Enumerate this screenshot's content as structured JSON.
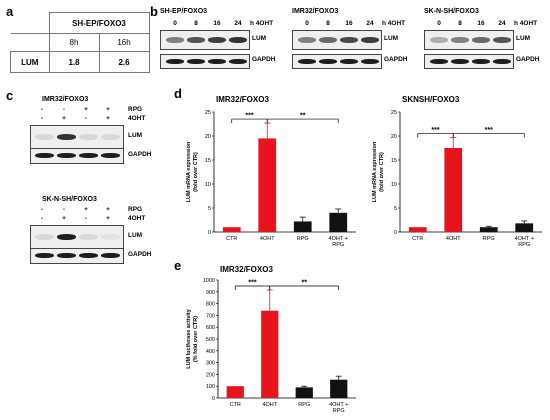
{
  "panel_labels": {
    "a": "a",
    "b": "b",
    "c": "c",
    "d": "d",
    "e": "e"
  },
  "panel_a": {
    "header": "SH-EP/FOXO3",
    "cols": [
      "8h",
      "16h"
    ],
    "row_label": "LUM",
    "values": [
      "1.8",
      "2.6"
    ]
  },
  "panel_b": {
    "blots": [
      {
        "title": "SH-EP/FOXO3",
        "times": [
          "0",
          "8",
          "16",
          "24"
        ],
        "unit": "h 4OHT",
        "rows": [
          "LUM",
          "GAPDH"
        ]
      },
      {
        "title": "IMR32/FOXO3",
        "times": [
          "0",
          "8",
          "16",
          "24"
        ],
        "unit": "h 4OHT",
        "rows": [
          "LUM",
          "GAPDH"
        ]
      },
      {
        "title": "SK-N-SH/FOXO3",
        "times": [
          "0",
          "8",
          "16",
          "24"
        ],
        "unit": "h 4OHT",
        "rows": [
          "LUM",
          "GAPDH"
        ]
      }
    ]
  },
  "panel_c": {
    "blots": [
      {
        "title": "IMR32/FOXO3",
        "rpg": [
          "-",
          "-",
          "+",
          "+"
        ],
        "oht": [
          "-",
          "+",
          "-",
          "+"
        ],
        "rpg_label": "RPG",
        "oht_label": "4OHT",
        "rows": [
          "LUM",
          "GAPDH"
        ]
      },
      {
        "title": "SK-N-SH/FOXO3",
        "rpg": [
          "-",
          "-",
          "+",
          "+"
        ],
        "oht": [
          "-",
          "+",
          "-",
          "+"
        ],
        "rpg_label": "RPG",
        "oht_label": "4OHT",
        "rows": [
          "LUM",
          "GAPDH"
        ]
      }
    ]
  },
  "colors": {
    "red": "#e8141b",
    "black": "#111111"
  },
  "chart_data": [
    {
      "id": "d1",
      "type": "bar",
      "title": "IMR32/FOXO3",
      "ylabel": "LUM mRNA expression\n(fold over CTR)",
      "categories": [
        "CTR",
        "4OHT",
        "RPG",
        "4OHT +\nRPG"
      ],
      "values": [
        1,
        19.5,
        2.2,
        4
      ],
      "errors": [
        0,
        3.2,
        0.9,
        0.8
      ],
      "colors": [
        "red",
        "red",
        "black",
        "black"
      ],
      "ylim": [
        0,
        25
      ],
      "yticks": [
        0,
        5,
        10,
        15,
        20,
        25
      ],
      "sig": [
        {
          "from": 0,
          "to": 1,
          "label": "***"
        },
        {
          "from": 1,
          "to": 3,
          "label": "**"
        }
      ]
    },
    {
      "id": "d2",
      "type": "bar",
      "title": "SKNSH/FOXO3",
      "ylabel": "LUM mRNA expression\n(fold over CTR)",
      "categories": [
        "CTR",
        "4OHT",
        "RPG",
        "4OHT +\nRPG"
      ],
      "values": [
        1,
        17.5,
        1,
        1.8
      ],
      "errors": [
        0,
        2.2,
        0.2,
        0.5
      ],
      "colors": [
        "red",
        "red",
        "black",
        "black"
      ],
      "ylim": [
        0,
        25
      ],
      "yticks": [
        0,
        5,
        10,
        15,
        20,
        25
      ],
      "sig": [
        {
          "from": 0,
          "to": 1,
          "label": "***"
        },
        {
          "from": 1,
          "to": 3,
          "label": "***"
        }
      ]
    },
    {
      "id": "e1",
      "type": "bar",
      "title": "IMR32/FOXO3",
      "ylabel": "LUM luciferase activity\n(% fold over CTR)",
      "categories": [
        "CTR",
        "4OHT",
        "RPG",
        "4OHT +\nRPG"
      ],
      "values": [
        100,
        740,
        90,
        155
      ],
      "errors": [
        0,
        175,
        10,
        30
      ],
      "colors": [
        "red",
        "red",
        "black",
        "black"
      ],
      "ylim": [
        0,
        1000
      ],
      "yticks": [
        0,
        100,
        200,
        300,
        400,
        500,
        600,
        700,
        800,
        900,
        1000
      ],
      "sig": [
        {
          "from": 0,
          "to": 1,
          "label": "***"
        },
        {
          "from": 1,
          "to": 3,
          "label": "**"
        }
      ]
    }
  ]
}
